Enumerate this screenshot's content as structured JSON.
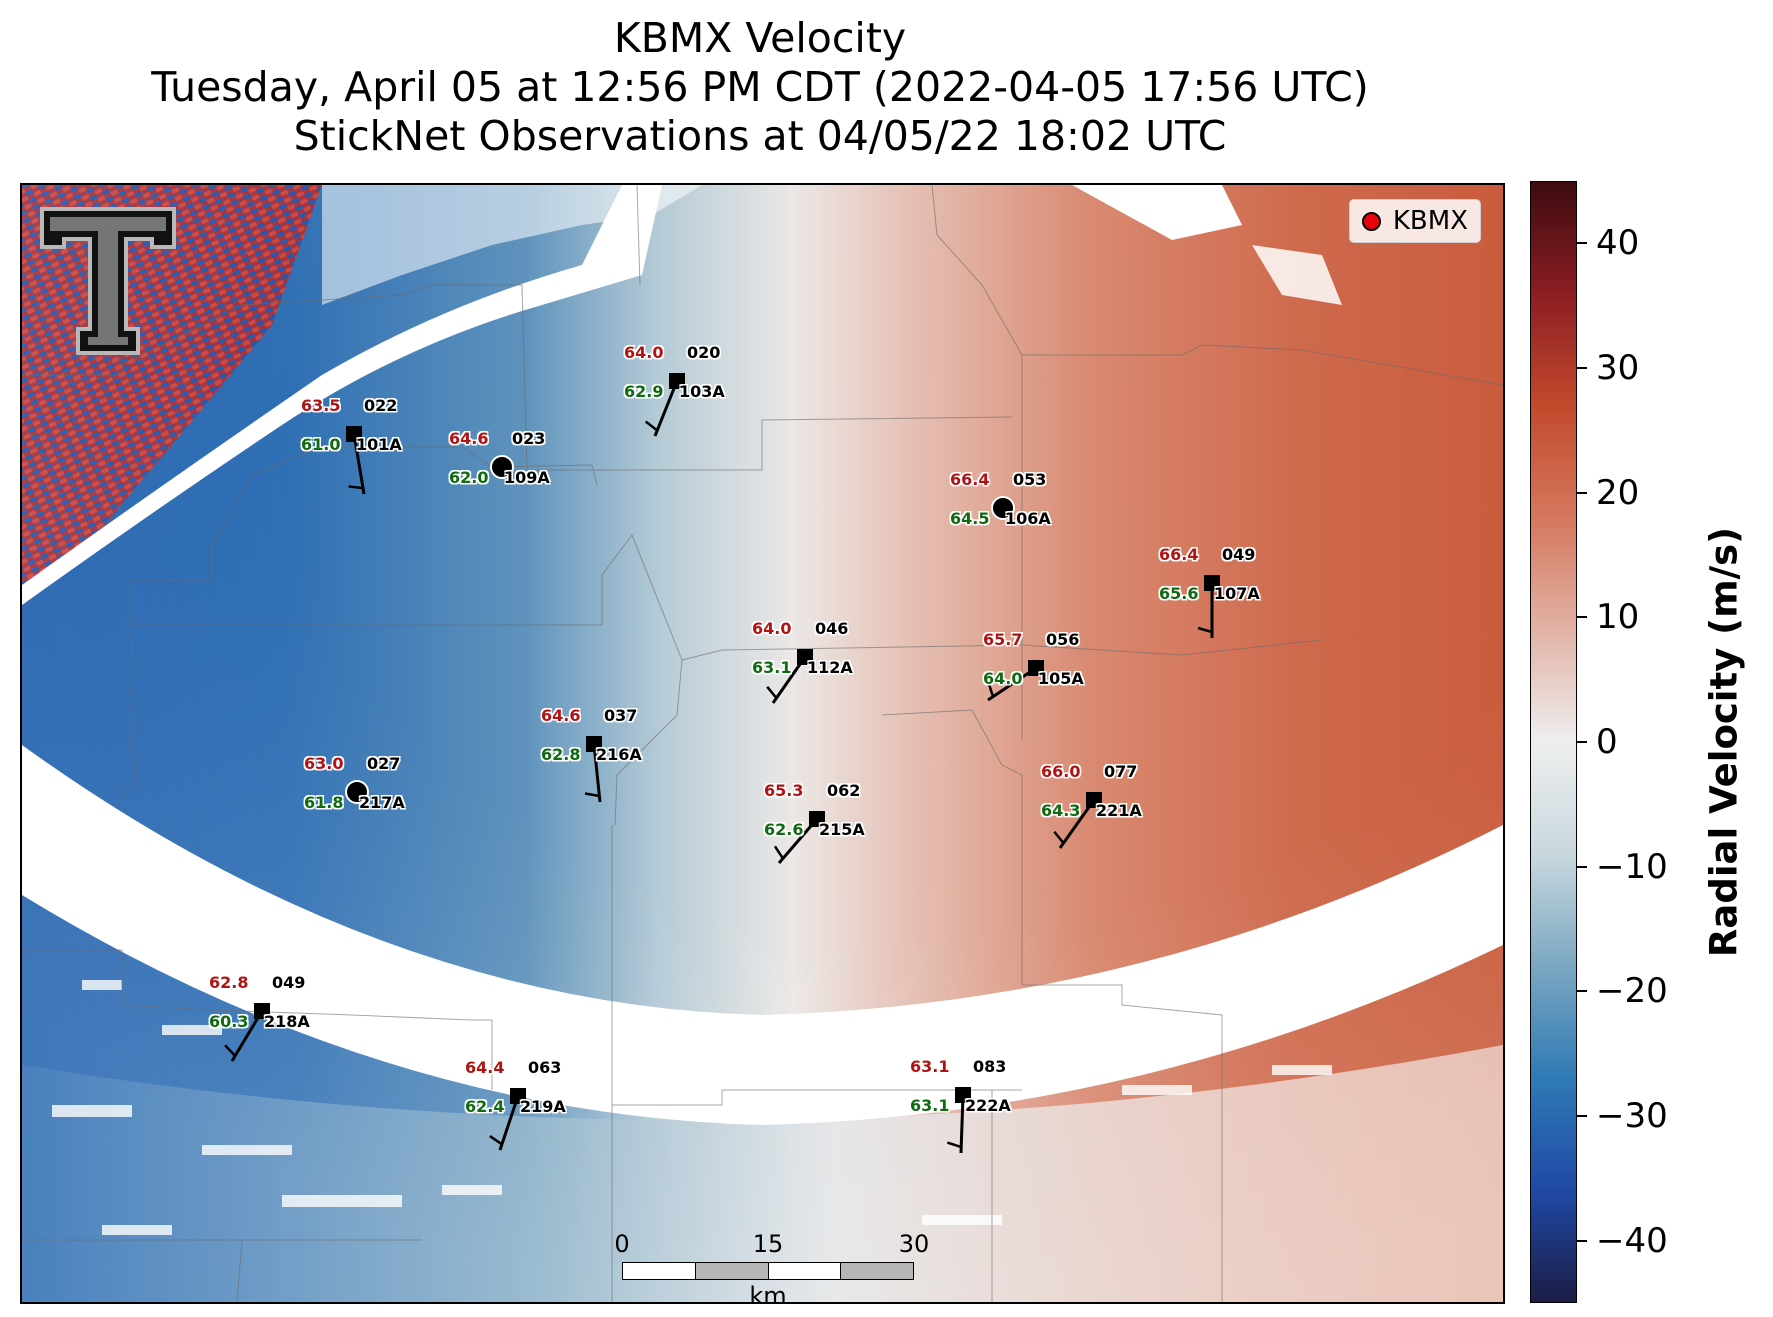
{
  "title": {
    "line1": "KBMX Velocity",
    "line2": "Tuesday, April 05 at 12:56 PM CDT (2022-04-05 17:56 UTC)",
    "line3": "StickNet Observations at 04/05/22 18:02 UTC"
  },
  "legend": {
    "label": "KBMX",
    "marker_color": "#e8000b"
  },
  "logo": {
    "name": "texas-tech-double-t-logo",
    "text": "T"
  },
  "colorbar": {
    "title": "Radial Velocity (m/s)",
    "ticks": [
      "40",
      "30",
      "20",
      "10",
      "0",
      "−10",
      "−20",
      "−30",
      "−40"
    ],
    "range": [
      -45,
      45
    ],
    "colors": [
      "#1c1d45",
      "#1f49a6",
      "#2f7ab5",
      "#7ba7c2",
      "#c9d8de",
      "#eeeeee",
      "#e2b3a6",
      "#d5775d",
      "#c24a2c",
      "#8c1d23",
      "#3d0c10"
    ]
  },
  "scale_bar": {
    "labels": [
      "0",
      "15",
      "30"
    ],
    "unit": "km"
  },
  "stations": [
    {
      "id": "101A",
      "temp": "63.5",
      "dew": "61.0",
      "dir": "022",
      "marker": "square"
    },
    {
      "id": "109A",
      "temp": "64.6",
      "dew": "62.0",
      "dir": "023",
      "marker": "calm"
    },
    {
      "id": "103A",
      "temp": "64.0",
      "dew": "62.9",
      "dir": "020",
      "marker": "square"
    },
    {
      "id": "106A",
      "temp": "66.4",
      "dew": "64.5",
      "dir": "053",
      "marker": "calm"
    },
    {
      "id": "107A",
      "temp": "66.4",
      "dew": "65.6",
      "dir": "049",
      "marker": "square"
    },
    {
      "id": "112A",
      "temp": "64.0",
      "dew": "63.1",
      "dir": "046",
      "marker": "square"
    },
    {
      "id": "105A",
      "temp": "65.7",
      "dew": "64.0",
      "dir": "056",
      "marker": "square"
    },
    {
      "id": "216A",
      "temp": "64.6",
      "dew": "62.8",
      "dir": "037",
      "marker": "square"
    },
    {
      "id": "217A",
      "temp": "63.0",
      "dew": "61.8",
      "dir": "027",
      "marker": "calm"
    },
    {
      "id": "215A",
      "temp": "65.3",
      "dew": "62.6",
      "dir": "062",
      "marker": "square"
    },
    {
      "id": "221A",
      "temp": "66.0",
      "dew": "64.3",
      "dir": "077",
      "marker": "square"
    },
    {
      "id": "218A",
      "temp": "62.8",
      "dew": "60.3",
      "dir": "049",
      "marker": "square"
    },
    {
      "id": "219A",
      "temp": "64.4",
      "dew": "62.4",
      "dir": "063",
      "marker": "square"
    },
    {
      "id": "222A",
      "temp": "63.1",
      "dew": "63.1",
      "dir": "083",
      "marker": "square"
    }
  ]
}
